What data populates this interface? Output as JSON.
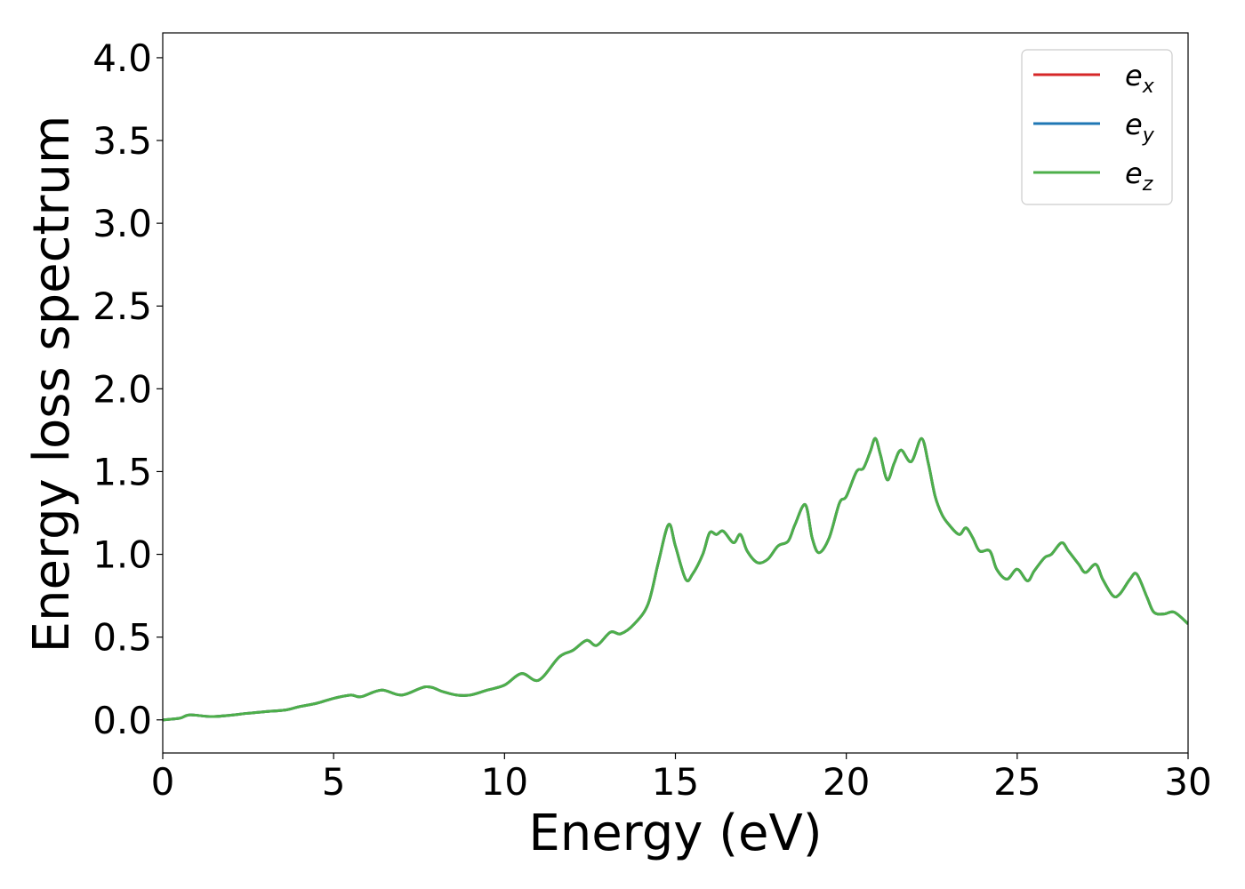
{
  "chart_data": {
    "type": "line",
    "xlabel": "Energy (eV)",
    "ylabel": "Energy loss spectrum",
    "xlim": [
      0,
      30
    ],
    "ylim": [
      -0.2,
      4.15
    ],
    "xticks": [
      0,
      5,
      10,
      15,
      20,
      25,
      30
    ],
    "xtick_labels": [
      "0",
      "5",
      "10",
      "15",
      "20",
      "25",
      "30"
    ],
    "yticks": [
      0.0,
      0.5,
      1.0,
      1.5,
      2.0,
      2.5,
      3.0,
      3.5,
      4.0
    ],
    "ytick_labels": [
      "0.0",
      "0.5",
      "1.0",
      "1.5",
      "2.0",
      "2.5",
      "3.0",
      "3.5",
      "4.0"
    ],
    "grid": false,
    "legend_position": "top-right",
    "x": [
      0,
      0.5,
      0.8,
      1.5,
      2.5,
      3.0,
      3.6,
      4.0,
      4.5,
      5.0,
      5.5,
      5.8,
      6.4,
      7.0,
      7.7,
      8.2,
      8.6,
      9.0,
      9.5,
      10.0,
      10.5,
      11.0,
      11.6,
      12.0,
      12.4,
      12.7,
      13.1,
      13.4,
      13.8,
      14.2,
      14.5,
      14.8,
      15.0,
      15.3,
      15.5,
      15.8,
      16.0,
      16.2,
      16.4,
      16.7,
      16.9,
      17.1,
      17.4,
      17.7,
      18.0,
      18.3,
      18.5,
      18.8,
      19.0,
      19.2,
      19.5,
      19.8,
      20.0,
      20.3,
      20.5,
      20.7,
      20.85,
      21.0,
      21.2,
      21.4,
      21.6,
      21.9,
      22.2,
      22.4,
      22.6,
      22.8,
      23.0,
      23.3,
      23.5,
      23.7,
      23.9,
      24.2,
      24.4,
      24.7,
      25.0,
      25.3,
      25.5,
      25.8,
      26.0,
      26.3,
      26.5,
      26.8,
      27.0,
      27.3,
      27.5,
      27.8,
      28.0,
      28.3,
      28.5,
      28.8,
      29.0,
      29.3,
      29.6,
      30.0
    ],
    "series": [
      {
        "name": "e_x",
        "label": "e",
        "subscript": "x",
        "color": "#d62728",
        "values": [
          0.0,
          0.01,
          0.03,
          0.02,
          0.04,
          0.05,
          0.06,
          0.08,
          0.1,
          0.13,
          0.15,
          0.14,
          0.18,
          0.15,
          0.2,
          0.17,
          0.15,
          0.15,
          0.18,
          0.21,
          0.28,
          0.24,
          0.38,
          0.42,
          0.48,
          0.45,
          0.53,
          0.52,
          0.58,
          0.7,
          0.95,
          1.18,
          1.05,
          0.85,
          0.88,
          1.0,
          1.13,
          1.12,
          1.14,
          1.07,
          1.12,
          1.02,
          0.95,
          0.97,
          1.05,
          1.08,
          1.18,
          1.3,
          1.1,
          1.01,
          1.1,
          1.31,
          1.35,
          1.5,
          1.52,
          1.62,
          1.7,
          1.6,
          1.45,
          1.55,
          1.63,
          1.56,
          1.7,
          1.55,
          1.35,
          1.24,
          1.18,
          1.12,
          1.16,
          1.1,
          1.02,
          1.02,
          0.91,
          0.85,
          0.91,
          0.84,
          0.9,
          0.98,
          1.0,
          1.07,
          1.02,
          0.94,
          0.89,
          0.94,
          0.85,
          0.75,
          0.76,
          0.85,
          0.88,
          0.74,
          0.65,
          0.64,
          0.65,
          0.58
        ]
      },
      {
        "name": "e_y",
        "label": "e",
        "subscript": "y",
        "color": "#1f77b4",
        "values": [
          0.0,
          0.01,
          0.03,
          0.02,
          0.04,
          0.05,
          0.06,
          0.08,
          0.1,
          0.13,
          0.15,
          0.14,
          0.18,
          0.15,
          0.2,
          0.17,
          0.15,
          0.15,
          0.18,
          0.21,
          0.28,
          0.24,
          0.38,
          0.42,
          0.48,
          0.45,
          0.53,
          0.52,
          0.58,
          0.7,
          0.95,
          1.18,
          1.05,
          0.85,
          0.88,
          1.0,
          1.13,
          1.12,
          1.14,
          1.07,
          1.12,
          1.02,
          0.95,
          0.97,
          1.05,
          1.08,
          1.18,
          1.3,
          1.1,
          1.01,
          1.1,
          1.31,
          1.35,
          1.5,
          1.52,
          1.62,
          1.7,
          1.6,
          1.45,
          1.55,
          1.63,
          1.56,
          1.7,
          1.55,
          1.35,
          1.24,
          1.18,
          1.12,
          1.16,
          1.1,
          1.02,
          1.02,
          0.91,
          0.85,
          0.91,
          0.84,
          0.9,
          0.98,
          1.0,
          1.07,
          1.02,
          0.94,
          0.89,
          0.94,
          0.85,
          0.75,
          0.76,
          0.85,
          0.88,
          0.74,
          0.65,
          0.64,
          0.65,
          0.58
        ]
      },
      {
        "name": "e_z",
        "label": "e",
        "subscript": "z",
        "color": "#4daf4a",
        "values": [
          0.0,
          0.01,
          0.03,
          0.02,
          0.04,
          0.05,
          0.06,
          0.08,
          0.1,
          0.13,
          0.15,
          0.14,
          0.18,
          0.15,
          0.2,
          0.17,
          0.15,
          0.15,
          0.18,
          0.21,
          0.28,
          0.24,
          0.38,
          0.42,
          0.48,
          0.45,
          0.53,
          0.52,
          0.58,
          0.7,
          0.95,
          1.18,
          1.05,
          0.85,
          0.88,
          1.0,
          1.13,
          1.12,
          1.14,
          1.07,
          1.12,
          1.02,
          0.95,
          0.97,
          1.05,
          1.08,
          1.18,
          1.3,
          1.1,
          1.01,
          1.1,
          1.31,
          1.35,
          1.5,
          1.52,
          1.62,
          1.7,
          1.6,
          1.45,
          1.55,
          1.63,
          1.56,
          1.7,
          1.55,
          1.35,
          1.24,
          1.18,
          1.12,
          1.16,
          1.1,
          1.02,
          1.02,
          0.91,
          0.85,
          0.91,
          0.84,
          0.9,
          0.98,
          1.0,
          1.07,
          1.02,
          0.94,
          0.89,
          0.94,
          0.85,
          0.75,
          0.76,
          0.85,
          0.88,
          0.74,
          0.65,
          0.64,
          0.65,
          0.58
        ]
      }
    ]
  }
}
